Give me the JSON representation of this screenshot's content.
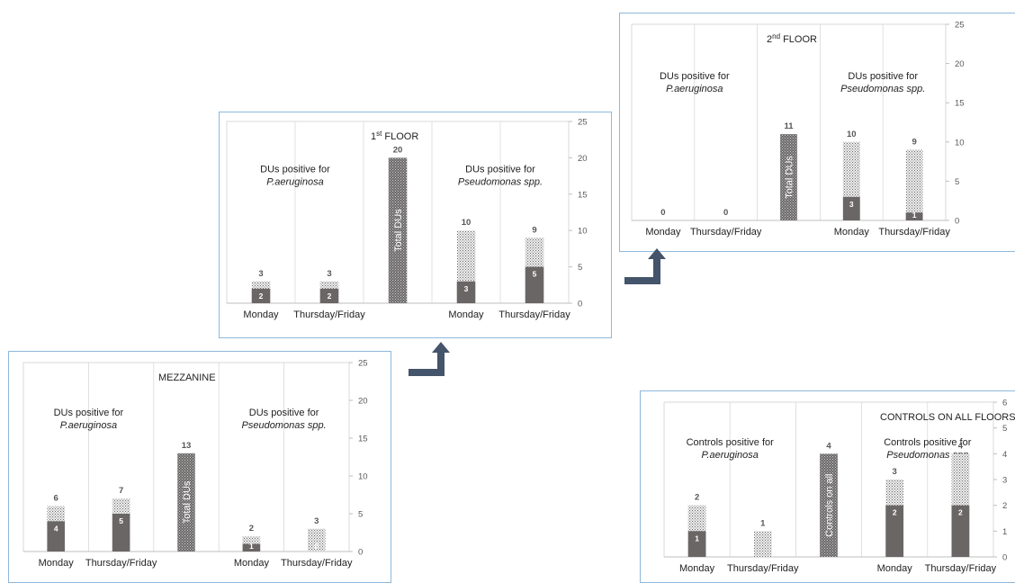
{
  "colors": {
    "bar_fill": "#f0f0f0",
    "bar_pattern": "#666666",
    "positive_fill": "#6b6666",
    "total_fill": "#6b6868",
    "count_label": "#555555",
    "inner_label": "#ffffff",
    "axis_text": "#595959",
    "gridline": "#d9d9d9",
    "panel_border": "#8fb8dc",
    "arrow": "#44546a"
  },
  "chart_data": [
    {
      "type": "bar",
      "id": "first-floor",
      "title": "1",
      "title_sup": "st",
      "title_rest": " FLOOR",
      "ylim": [
        0,
        25
      ],
      "ticks": [
        "0",
        "5",
        "10",
        "15",
        "20",
        "25"
      ],
      "group_labels": [
        {
          "line1": "DUs positive for",
          "line2": "P.aeruginosa"
        },
        {
          "line1": "DUs positive for",
          "line2": "Pseudomonas spp."
        }
      ],
      "categories": [
        "Monday",
        "Thursday/Friday",
        "",
        "Monday",
        "Thursday/Friday"
      ],
      "bars": [
        {
          "total": 3,
          "positive": 2,
          "total_label": "3",
          "positive_label": "2",
          "vertical_label": ""
        },
        {
          "total": 3,
          "positive": 2,
          "total_label": "3",
          "positive_label": "2",
          "vertical_label": ""
        },
        {
          "total": 20,
          "positive": 20,
          "total_label": "20",
          "positive_label": "",
          "vertical_label": "Total DUs"
        },
        {
          "total": 10,
          "positive": 3,
          "total_label": "10",
          "positive_label": "3",
          "vertical_label": ""
        },
        {
          "total": 9,
          "positive": 5,
          "total_label": "9",
          "positive_label": "5",
          "vertical_label": ""
        }
      ]
    },
    {
      "type": "bar",
      "id": "second-floor",
      "title": "2",
      "title_sup": "nd",
      "title_rest": " FLOOR",
      "ylim": [
        0,
        25
      ],
      "ticks": [
        "0",
        "5",
        "10",
        "15",
        "20",
        "25"
      ],
      "group_labels": [
        {
          "line1": "DUs positive for",
          "line2": "P.aeruginosa"
        },
        {
          "line1": "DUs positive for",
          "line2": "Pseudomonas spp."
        }
      ],
      "categories": [
        "Monday",
        "Thursday/Friday",
        "",
        "Monday",
        "Thursday/Friday"
      ],
      "bars": [
        {
          "total": 0,
          "positive": 0,
          "total_label": "0",
          "positive_label": "",
          "vertical_label": ""
        },
        {
          "total": 0,
          "positive": 0,
          "total_label": "0",
          "positive_label": "",
          "vertical_label": ""
        },
        {
          "total": 11,
          "positive": 11,
          "total_label": "11",
          "positive_label": "",
          "vertical_label": "Total DUs"
        },
        {
          "total": 10,
          "positive": 3,
          "total_label": "10",
          "positive_label": "3",
          "vertical_label": ""
        },
        {
          "total": 9,
          "positive": 1,
          "total_label": "9",
          "positive_label": "1",
          "vertical_label": ""
        }
      ]
    },
    {
      "type": "bar",
      "id": "mezzanine",
      "title": "MEZZANINE",
      "title_sup": "",
      "title_rest": "",
      "ylim": [
        0,
        25
      ],
      "ticks": [
        "0",
        "5",
        "10",
        "15",
        "20",
        "25"
      ],
      "group_labels": [
        {
          "line1": "DUs positive for",
          "line2": "P.aeruginosa"
        },
        {
          "line1": "DUs positive for",
          "line2": "Pseudomonas spp."
        }
      ],
      "categories": [
        "Monday",
        "Thursday/Friday",
        "",
        "Monday",
        "Thursday/Friday"
      ],
      "bars": [
        {
          "total": 6,
          "positive": 4,
          "total_label": "6",
          "positive_label": "4",
          "vertical_label": ""
        },
        {
          "total": 7,
          "positive": 5,
          "total_label": "7",
          "positive_label": "5",
          "vertical_label": ""
        },
        {
          "total": 13,
          "positive": 13,
          "total_label": "13",
          "positive_label": "",
          "vertical_label": "Total DUs"
        },
        {
          "total": 2,
          "positive": 1,
          "total_label": "2",
          "positive_label": "1",
          "vertical_label": ""
        },
        {
          "total": 3,
          "positive": 0,
          "total_label": "3",
          "positive_label": "0",
          "vertical_label": ""
        }
      ]
    },
    {
      "type": "bar",
      "id": "controls",
      "title": "CONTROLS ON ALL FLOORS",
      "title_sup": "",
      "title_rest": "",
      "ylim": [
        0,
        6
      ],
      "ticks": [
        "0",
        "1",
        "2",
        "3",
        "4",
        "5",
        "6"
      ],
      "group_labels": [
        {
          "line1": "Controls positive for",
          "line2": "P.aeruginosa"
        },
        {
          "line1": "Controls positive for",
          "line2": "Pseudomonas spp"
        }
      ],
      "categories": [
        "Monday",
        "Thursday/Friday",
        "",
        "Monday",
        "Thursday/Friday"
      ],
      "bars": [
        {
          "total": 2,
          "positive": 1,
          "total_label": "2",
          "positive_label": "1",
          "vertical_label": ""
        },
        {
          "total": 1,
          "positive": 0,
          "total_label": "1",
          "positive_label": "",
          "vertical_label": ""
        },
        {
          "total": 4,
          "positive": 4,
          "total_label": "4",
          "positive_label": "",
          "vertical_label": "Controls on all"
        },
        {
          "total": 3,
          "positive": 2,
          "total_label": "3",
          "positive_label": "2",
          "vertical_label": ""
        },
        {
          "total": 4,
          "positive": 2,
          "total_label": "4",
          "positive_label": "2",
          "vertical_label": ""
        }
      ]
    }
  ]
}
